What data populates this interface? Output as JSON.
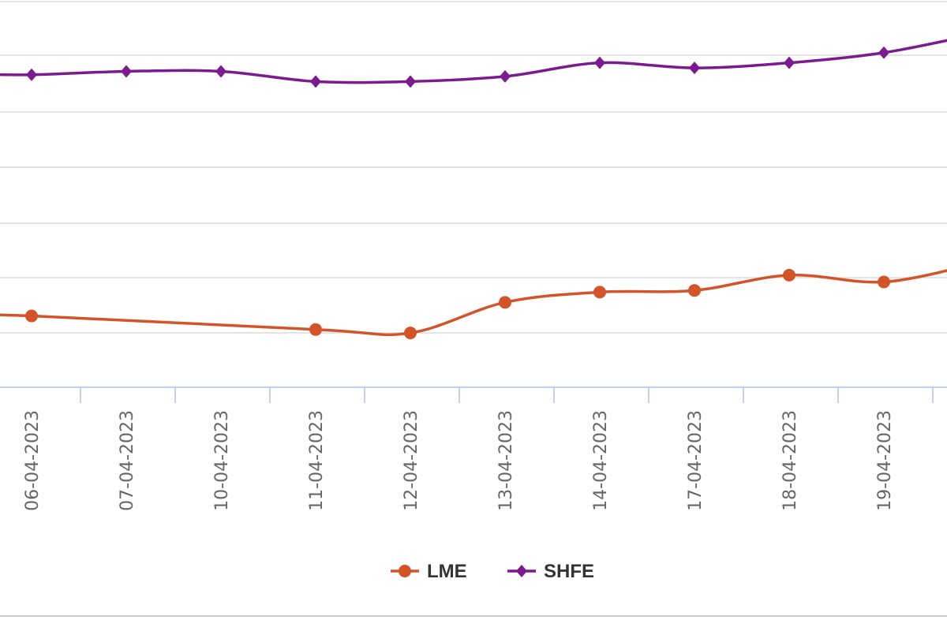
{
  "chart_data": {
    "type": "line",
    "title": "",
    "xlabel": "",
    "ylabel": "",
    "categories": [
      "06-04-2023",
      "07-04-2023",
      "10-04-2023",
      "11-04-2023",
      "12-04-2023",
      "13-04-2023",
      "14-04-2023",
      "17-04-2023",
      "18-04-2023",
      "19-04-2023"
    ],
    "series": [
      {
        "name": "LME",
        "color": "#d4542a",
        "marker": "circle",
        "values": [
          0.39,
          null,
          null,
          0.35,
          0.34,
          0.43,
          0.46,
          0.465,
          0.51,
          0.49
        ]
      },
      {
        "name": "SHFE",
        "color": "#7b1b8f",
        "marker": "diamond",
        "values": [
          1.1,
          1.11,
          1.11,
          1.08,
          1.08,
          1.095,
          1.135,
          1.12,
          1.135,
          1.165
        ]
      }
    ],
    "ylim": [
      0.18,
      1.32
    ],
    "grid": true,
    "legend": "bottom-center",
    "line_smoothing": "spline"
  }
}
